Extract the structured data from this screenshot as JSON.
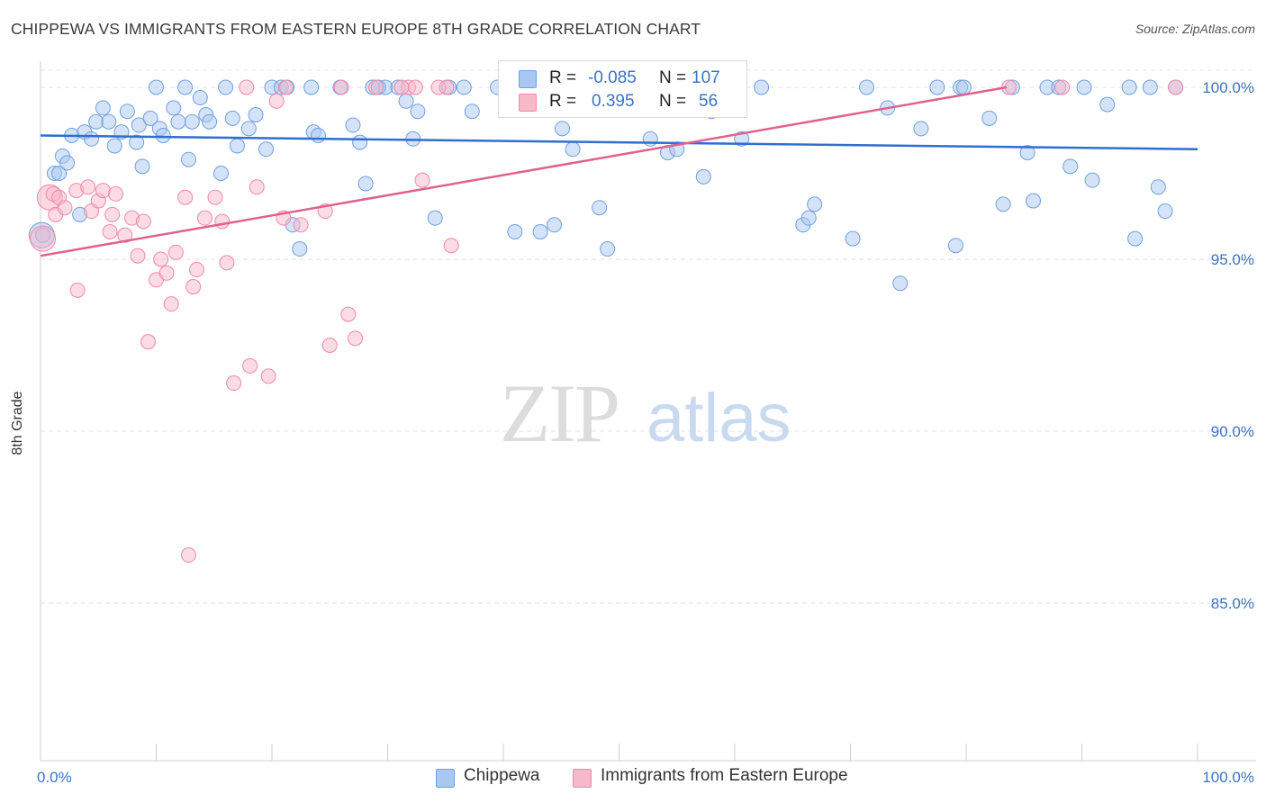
{
  "header": {
    "title": "CHIPPEWA VS IMMIGRANTS FROM EASTERN EUROPE 8TH GRADE CORRELATION CHART",
    "source": "Source: ZipAtlas.com"
  },
  "watermark": {
    "zip": "ZIP",
    "atlas": "atlas"
  },
  "legend_stats": {
    "rows": [
      {
        "r_label": "R =",
        "r_value": "-0.085",
        "n_label": "N =",
        "n_value": "107",
        "color": "#a9c7f0"
      },
      {
        "r_label": "R =",
        "r_value": "0.395",
        "n_label": "N =",
        "n_value": "56",
        "color": "#f7b8c9"
      }
    ]
  },
  "bottom_legend": {
    "items": [
      {
        "label": "Chippewa",
        "color": "#a9c7f0"
      },
      {
        "label": "Immigrants from Eastern Europe",
        "color": "#f7b8c9"
      }
    ]
  },
  "chart_data": {
    "type": "scatter",
    "title": "CHIPPEWA VS IMMIGRANTS FROM EASTERN EUROPE 8TH GRADE CORRELATION CHART",
    "xlabel": "",
    "ylabel": "8th Grade",
    "xlim": [
      0,
      100
    ],
    "ylim": [
      80.5,
      100.7
    ],
    "x_tick_labels": [
      {
        "value": 0,
        "label": "0.0%"
      },
      {
        "value": 100,
        "label": "100.0%"
      }
    ],
    "y_tick_labels": [
      {
        "value": 100,
        "label": "100.0%"
      },
      {
        "value": 95,
        "label": "95.0%"
      },
      {
        "value": 90,
        "label": "90.0%"
      },
      {
        "value": 85,
        "label": "85.0%"
      }
    ],
    "grid": true,
    "legend_position": "top-center",
    "series": [
      {
        "name": "Chippewa",
        "color": "#6fa0e0",
        "fill": "#a9c7f0",
        "trend": {
          "x": [
            0,
            100
          ],
          "y": [
            98.6,
            98.2
          ]
        },
        "points": [
          [
            0.2,
            95.7
          ],
          [
            1.2,
            97.5
          ],
          [
            1.6,
            97.5
          ],
          [
            1.9,
            98.0
          ],
          [
            2.3,
            97.8
          ],
          [
            2.7,
            98.6
          ],
          [
            3.4,
            96.3
          ],
          [
            3.8,
            98.7
          ],
          [
            4.4,
            98.5
          ],
          [
            4.8,
            99.0
          ],
          [
            5.4,
            99.4
          ],
          [
            5.9,
            99.0
          ],
          [
            6.4,
            98.3
          ],
          [
            7.0,
            98.7
          ],
          [
            7.5,
            99.3
          ],
          [
            8.3,
            98.4
          ],
          [
            8.5,
            98.9
          ],
          [
            8.8,
            97.7
          ],
          [
            9.5,
            99.1
          ],
          [
            10.0,
            100.0
          ],
          [
            10.3,
            98.8
          ],
          [
            10.6,
            98.6
          ],
          [
            11.5,
            99.4
          ],
          [
            11.9,
            99.0
          ],
          [
            12.5,
            100.0
          ],
          [
            12.8,
            97.9
          ],
          [
            13.1,
            99.0
          ],
          [
            13.8,
            99.7
          ],
          [
            14.3,
            99.2
          ],
          [
            14.6,
            99.0
          ],
          [
            15.6,
            97.5
          ],
          [
            16.0,
            100.0
          ],
          [
            16.6,
            99.1
          ],
          [
            17.0,
            98.3
          ],
          [
            18.0,
            98.8
          ],
          [
            18.6,
            99.2
          ],
          [
            19.5,
            98.2
          ],
          [
            20.0,
            100.0
          ],
          [
            20.8,
            100.0
          ],
          [
            21.8,
            96.0
          ],
          [
            22.4,
            95.3
          ],
          [
            23.4,
            100.0
          ],
          [
            23.6,
            98.7
          ],
          [
            24.0,
            98.6
          ],
          [
            25.9,
            100.0
          ],
          [
            27.0,
            98.9
          ],
          [
            27.6,
            98.4
          ],
          [
            28.1,
            97.2
          ],
          [
            28.7,
            100.0
          ],
          [
            29.8,
            100.0
          ],
          [
            30.9,
            100.0
          ],
          [
            31.6,
            99.6
          ],
          [
            32.2,
            98.5
          ],
          [
            32.6,
            99.3
          ],
          [
            34.1,
            96.2
          ],
          [
            35.3,
            100.0
          ],
          [
            37.3,
            99.3
          ],
          [
            39.5,
            100.0
          ],
          [
            41.0,
            95.8
          ],
          [
            43.2,
            95.8
          ],
          [
            44.4,
            96.0
          ],
          [
            45.1,
            98.8
          ],
          [
            46.0,
            98.2
          ],
          [
            46.5,
            100.0
          ],
          [
            48.3,
            96.5
          ],
          [
            49.0,
            95.3
          ],
          [
            49.4,
            100.0
          ],
          [
            52.7,
            98.5
          ],
          [
            54.2,
            98.1
          ],
          [
            55.0,
            98.2
          ],
          [
            57.3,
            97.4
          ],
          [
            58.0,
            99.3
          ],
          [
            60.6,
            98.5
          ],
          [
            62.3,
            100.0
          ],
          [
            65.9,
            96.0
          ],
          [
            66.4,
            96.2
          ],
          [
            66.9,
            96.6
          ],
          [
            70.2,
            95.6
          ],
          [
            71.4,
            100.0
          ],
          [
            73.2,
            99.4
          ],
          [
            74.3,
            94.3
          ],
          [
            76.1,
            98.8
          ],
          [
            77.5,
            100.0
          ],
          [
            79.1,
            95.4
          ],
          [
            79.5,
            100.0
          ],
          [
            79.8,
            100.0
          ],
          [
            82.0,
            99.1
          ],
          [
            83.2,
            96.6
          ],
          [
            84.0,
            100.0
          ],
          [
            85.3,
            98.1
          ],
          [
            85.8,
            96.7
          ],
          [
            87.0,
            100.0
          ],
          [
            88.0,
            100.0
          ],
          [
            89.0,
            97.7
          ],
          [
            90.2,
            100.0
          ],
          [
            90.9,
            97.3
          ],
          [
            92.2,
            99.5
          ],
          [
            94.1,
            100.0
          ],
          [
            94.6,
            95.6
          ],
          [
            95.9,
            100.0
          ],
          [
            96.6,
            97.1
          ],
          [
            97.2,
            96.4
          ],
          [
            98.1,
            100.0
          ],
          [
            50.1,
            99.7
          ],
          [
            36.6,
            100.0
          ],
          [
            29.2,
            100.0
          ],
          [
            21.3,
            100.0
          ]
        ],
        "large_points": [
          [
            0.1,
            95.7
          ]
        ]
      },
      {
        "name": "Immigrants from Eastern Europe",
        "color": "#ee8aa8",
        "fill": "#f7b8c9",
        "trend": {
          "x": [
            0,
            83.5
          ],
          "y": [
            95.1,
            100.0
          ]
        },
        "points": [
          [
            1.1,
            96.9
          ],
          [
            1.3,
            96.3
          ],
          [
            1.6,
            96.8
          ],
          [
            2.1,
            96.5
          ],
          [
            3.1,
            97.0
          ],
          [
            3.2,
            94.1
          ],
          [
            4.1,
            97.1
          ],
          [
            4.4,
            96.4
          ],
          [
            5.0,
            96.7
          ],
          [
            5.4,
            97.0
          ],
          [
            6.0,
            95.8
          ],
          [
            6.2,
            96.3
          ],
          [
            6.5,
            96.9
          ],
          [
            7.3,
            95.7
          ],
          [
            7.9,
            96.2
          ],
          [
            8.4,
            95.1
          ],
          [
            8.9,
            96.1
          ],
          [
            9.3,
            92.6
          ],
          [
            10.0,
            94.4
          ],
          [
            10.4,
            95.0
          ],
          [
            10.9,
            94.6
          ],
          [
            11.3,
            93.7
          ],
          [
            11.7,
            95.2
          ],
          [
            12.5,
            96.8
          ],
          [
            12.8,
            86.4
          ],
          [
            13.2,
            94.2
          ],
          [
            13.5,
            94.7
          ],
          [
            14.2,
            96.2
          ],
          [
            15.1,
            96.8
          ],
          [
            15.7,
            96.1
          ],
          [
            16.1,
            94.9
          ],
          [
            16.7,
            91.4
          ],
          [
            17.8,
            100.0
          ],
          [
            18.1,
            91.9
          ],
          [
            18.7,
            97.1
          ],
          [
            19.7,
            91.6
          ],
          [
            20.4,
            99.6
          ],
          [
            21.0,
            96.2
          ],
          [
            21.2,
            100.0
          ],
          [
            22.5,
            96.0
          ],
          [
            24.6,
            96.4
          ],
          [
            25.0,
            92.5
          ],
          [
            26.0,
            100.0
          ],
          [
            26.6,
            93.4
          ],
          [
            27.2,
            92.7
          ],
          [
            29.0,
            100.0
          ],
          [
            31.8,
            100.0
          ],
          [
            32.4,
            100.0
          ],
          [
            33.0,
            97.3
          ],
          [
            34.4,
            100.0
          ],
          [
            35.1,
            100.0
          ],
          [
            35.5,
            95.4
          ],
          [
            83.7,
            100.0
          ],
          [
            88.3,
            100.0
          ],
          [
            98.1,
            100.0
          ],
          [
            31.2,
            100.0
          ]
        ],
        "large_points": [
          [
            0.2,
            95.6
          ],
          [
            0.8,
            96.8
          ]
        ]
      }
    ]
  }
}
